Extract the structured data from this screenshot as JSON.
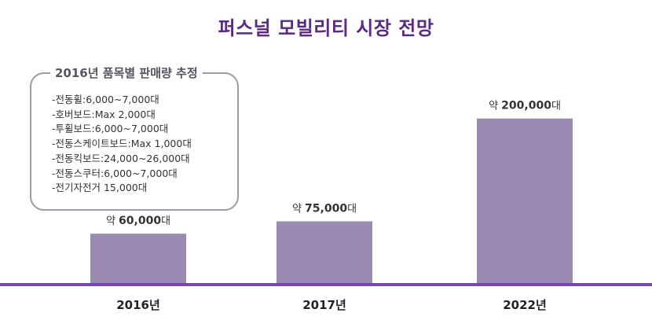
{
  "title": "퍼스널 모빌리티 시장 전망",
  "colors": {
    "title": "#5b2a86",
    "bar": "#9b8bb3",
    "axis": "#7b45b5"
  },
  "panel": {
    "title": "2016년 품목별 판매량 추정",
    "items": [
      "-전동휠:6,000~7,000대",
      "-호버보드:Max 2,000대",
      "-투휠보드:6,000~7,000대",
      "-전동스케이트보드:Max 1,000대",
      "-전동킥보드:24,000~26,000대",
      "-전동스쿠터:6,000~7,000대",
      "-전기자전거 15,000대"
    ]
  },
  "chart_data": {
    "type": "bar",
    "title": "퍼스널 모빌리티 시장 전망",
    "categories": [
      "2016년",
      "2017년",
      "2022년"
    ],
    "values": [
      60000,
      75000,
      200000
    ],
    "value_labels": [
      {
        "prefix": "약 ",
        "value": "60,000",
        "suffix": "대"
      },
      {
        "prefix": "약 ",
        "value": "75,000",
        "suffix": "대"
      },
      {
        "prefix": "약 ",
        "value": "200,000",
        "suffix": "대"
      }
    ],
    "xlabel": "",
    "ylabel": "",
    "ylim": [
      0,
      215000
    ],
    "grid": false,
    "legend": "none"
  }
}
